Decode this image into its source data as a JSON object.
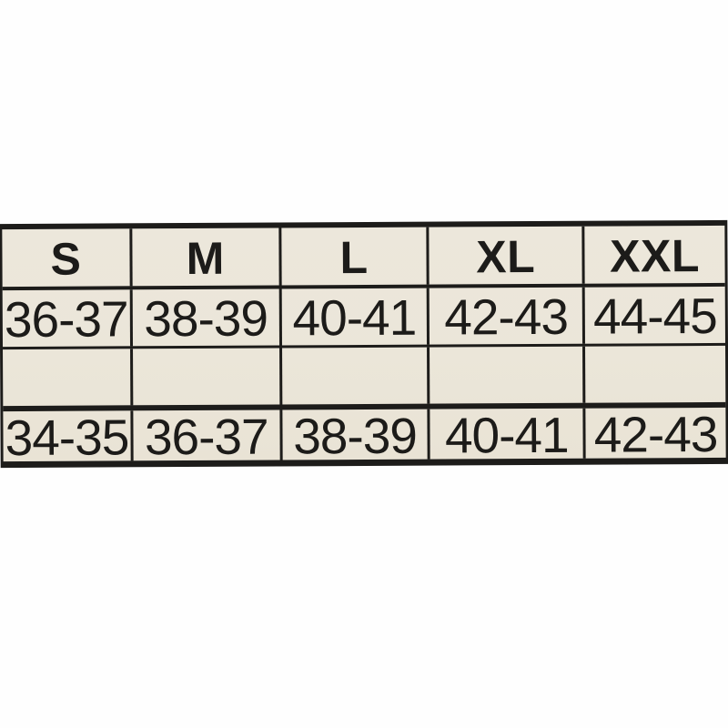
{
  "page": {
    "background_color": "#fefefe",
    "description_colors": {
      "label_background": "#ebe6d9",
      "border": "#1d1c1a",
      "text": "#1c1b19"
    }
  },
  "size_chart": {
    "columns": [
      "S",
      "M",
      "L",
      "XL",
      "XXL"
    ],
    "rows": [
      {
        "cells": [
          "36-37",
          "38-39",
          "40-41",
          "42-43",
          "44-45"
        ]
      },
      {
        "cells": [
          "",
          "",
          "",
          "",
          ""
        ]
      },
      {
        "cells": [
          "34-35",
          "36-37",
          "38-39",
          "40-41",
          "42-43"
        ]
      }
    ]
  },
  "chart_data": {
    "type": "table",
    "columns": [
      "S",
      "M",
      "L",
      "XL",
      "XXL"
    ],
    "rows": [
      [
        "36-37",
        "38-39",
        "40-41",
        "42-43",
        "44-45"
      ],
      [
        "",
        "",
        "",
        "",
        ""
      ],
      [
        "34-35",
        "36-37",
        "38-39",
        "40-41",
        "42-43"
      ]
    ],
    "notes_layout": "5-column size chart; header row bold; row 2 empty; thick outer border, thin divider between data rows 1 and 2, cream label on white background"
  }
}
